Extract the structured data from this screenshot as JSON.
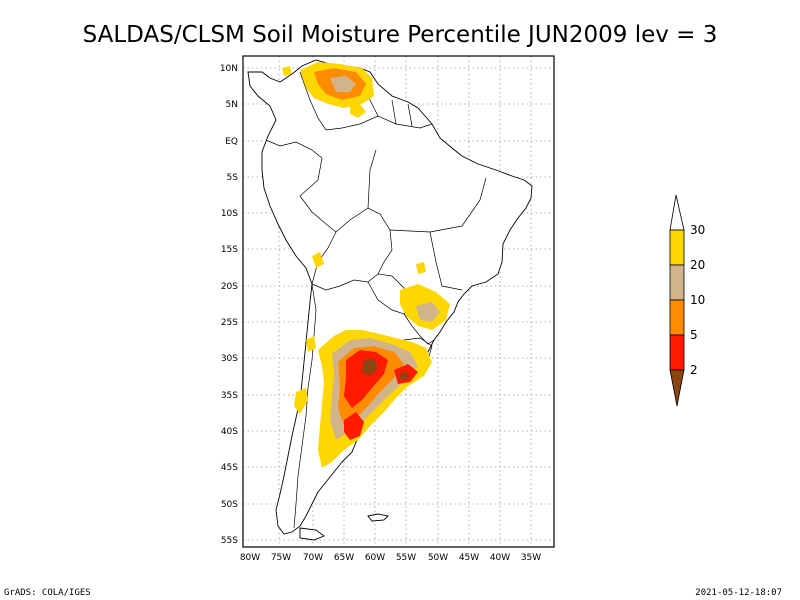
{
  "title": "SALDAS/CLSM Soil Moisture Percentile JUN2009 lev = 3",
  "footer": {
    "left": "GrADS: COLA/IGES",
    "right": "2021-05-12-18:07"
  },
  "axes": {
    "lon_labels": [
      "80W",
      "75W",
      "70W",
      "65W",
      "60W",
      "55W",
      "50W",
      "45W",
      "40W",
      "35W"
    ],
    "lat_labels": [
      "10N",
      "5N",
      "EQ",
      "5S",
      "10S",
      "15S",
      "20S",
      "25S",
      "30S",
      "35S",
      "40S",
      "45S",
      "50S",
      "55S"
    ]
  },
  "legend": {
    "labels": [
      "2",
      "5",
      "10",
      "20",
      "30"
    ],
    "colors": [
      "#8b4513",
      "#ff1a00",
      "#ff8c00",
      "#d2b48c",
      "#ffd700",
      "#ffffff"
    ]
  },
  "colors": {
    "dry_extreme": "#8b4513",
    "very_dry": "#ff1a00",
    "dry": "#ff8c00",
    "moderate": "#d2b48c",
    "slight": "#ffd700"
  }
}
